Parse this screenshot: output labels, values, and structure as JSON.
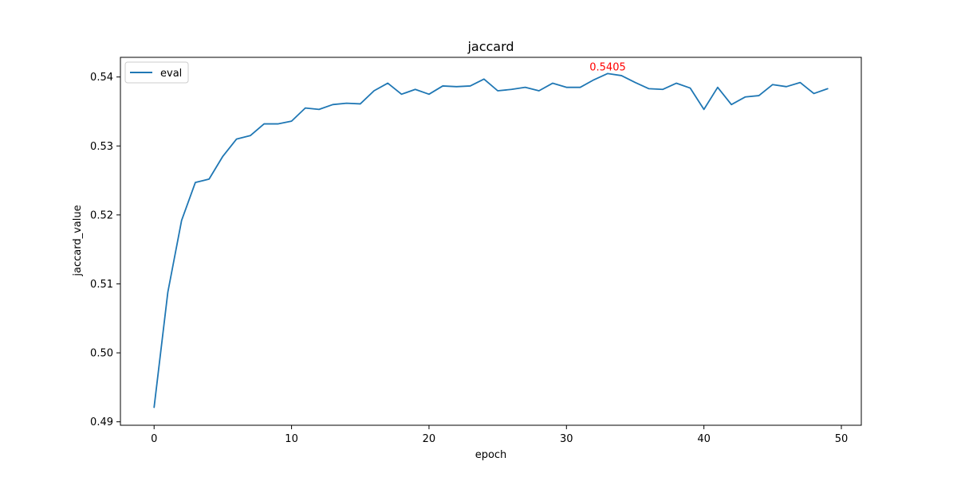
{
  "chart_data": {
    "type": "line",
    "title": "jaccard",
    "xlabel": "epoch",
    "ylabel": "jaccard_value",
    "xlim": [
      -2.45,
      51.45
    ],
    "ylim": [
      0.4895,
      0.54285
    ],
    "x_ticks": [
      0,
      10,
      20,
      30,
      40,
      50
    ],
    "y_ticks": [
      0.49,
      0.5,
      0.51,
      0.52,
      0.53,
      0.54
    ],
    "x_tick_labels": [
      "0",
      "10",
      "20",
      "30",
      "40",
      "50"
    ],
    "y_tick_labels": [
      "0.49",
      "0.50",
      "0.51",
      "0.52",
      "0.53",
      "0.54"
    ],
    "grid": false,
    "legend_position": "top-left",
    "series": [
      {
        "name": "eval",
        "color": "#1f77b4",
        "x": [
          0,
          1,
          2,
          3,
          4,
          5,
          6,
          7,
          8,
          9,
          10,
          11,
          12,
          13,
          14,
          15,
          16,
          17,
          18,
          19,
          20,
          21,
          22,
          23,
          24,
          25,
          26,
          27,
          28,
          29,
          30,
          31,
          32,
          33,
          34,
          35,
          36,
          37,
          38,
          39,
          40,
          41,
          42,
          43,
          44,
          45,
          46,
          47,
          48,
          49
        ],
        "values": [
          0.4921,
          0.5088,
          0.5192,
          0.5247,
          0.5252,
          0.5285,
          0.531,
          0.5315,
          0.5332,
          0.5332,
          0.5336,
          0.5355,
          0.5353,
          0.536,
          0.5362,
          0.5361,
          0.538,
          0.5391,
          0.5375,
          0.5382,
          0.5375,
          0.5387,
          0.5386,
          0.5387,
          0.5397,
          0.538,
          0.5382,
          0.5385,
          0.538,
          0.5391,
          0.5385,
          0.5385,
          0.5396,
          0.5405,
          0.5402,
          0.5392,
          0.5383,
          0.5382,
          0.5391,
          0.5384,
          0.5353,
          0.5385,
          0.536,
          0.5371,
          0.5373,
          0.5389,
          0.5386,
          0.5392,
          0.5376,
          0.5383
        ]
      }
    ],
    "annotations": [
      {
        "x": 33,
        "y": 0.5405,
        "text": "0.5405",
        "color": "#ff0000"
      }
    ]
  }
}
